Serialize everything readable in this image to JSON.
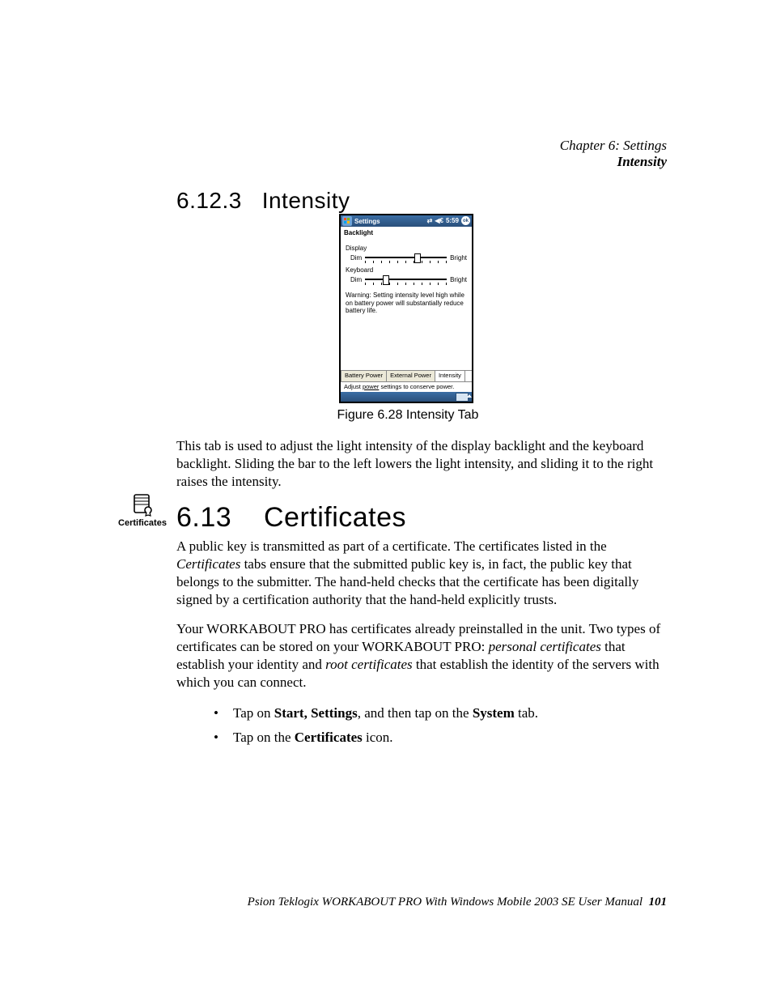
{
  "header": {
    "chapter": "Chapter 6: Settings",
    "subtitle": "Intensity"
  },
  "sections": {
    "s6_12_3": {
      "number": "6.12.3",
      "title": "Intensity"
    },
    "s6_13": {
      "number": "6.13",
      "title": "Certificates"
    }
  },
  "figure": {
    "caption": "Figure 6.28 Intensity Tab"
  },
  "phone": {
    "title": "Settings",
    "time": "5:59",
    "ok": "ok",
    "tab_header": "Backlight",
    "group_display": "Display",
    "group_keyboard": "Keyboard",
    "dim": "Dim",
    "bright": "Bright",
    "warning": "Warning: Setting intensity level high while on battery power will substantially reduce battery life.",
    "tabs": {
      "battery": "Battery Power",
      "external": "External Power",
      "intensity": "Intensity"
    },
    "link_pre": "Adjust ",
    "link_word": "power",
    "link_post": " settings to conserve power.",
    "sliders": {
      "num_ticks": 11,
      "display_thumb_pct": 63,
      "keyboard_thumb_pct": 25
    },
    "colors": {
      "titlebar_top": "#3b6ea5",
      "titlebar_bottom": "#2a4f7a",
      "tab_bg": "#ece9d8"
    }
  },
  "paragraphs": {
    "p1": "This tab is used to adjust the light intensity of the display backlight and the keyboard backlight. Sliding the bar to the left lowers the light intensity, and sliding it to the right raises the intensity.",
    "p2_pre": "A public key is transmitted as part of a certificate. The certificates listed in the ",
    "p2_ital": "Certificates",
    "p2_post": " tabs ensure that the submitted public key is, in fact, the public key that belongs to the submitter. The hand-held checks that the certificate has been digitally signed by a certification authority that the hand-held explicitly trusts.",
    "p3_pre": "Your WORKABOUT PRO has certificates already preinstalled in the unit. Two types of certificates can be stored on your WORKABOUT PRO: ",
    "p3_ital1": "personal certificates",
    "p3_mid": " that establish your identity and ",
    "p3_ital2": "root certificates",
    "p3_post": " that establish the identity of the servers with which you can connect."
  },
  "bullets": {
    "b1_pre": "Tap on ",
    "b1_bold": "Start, Settings",
    "b1_mid": ", and then tap on the ",
    "b1_bold2": "System",
    "b1_post": " tab.",
    "b2_pre": "Tap on the ",
    "b2_bold": "Certificates",
    "b2_post": " icon."
  },
  "icon": {
    "caption": "Certificates"
  },
  "footer": {
    "text": "Psion Teklogix WORKABOUT PRO With Windows Mobile 2003 SE User Manual",
    "page": "101"
  }
}
